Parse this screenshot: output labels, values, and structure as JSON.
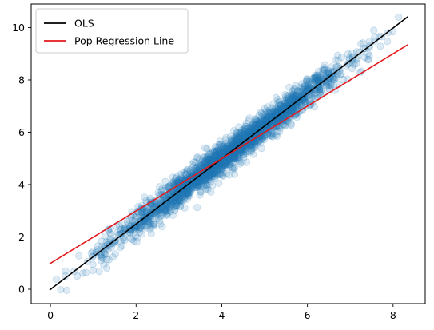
{
  "chart_data": {
    "type": "scatter",
    "title": "",
    "xlabel": "",
    "ylabel": "",
    "xlim": [
      -0.45,
      8.75
    ],
    "ylim": [
      -0.55,
      10.9
    ],
    "xticks": [
      0,
      2,
      4,
      6,
      8
    ],
    "yticks": [
      0,
      2,
      4,
      6,
      8,
      10
    ],
    "grid": false,
    "legend_position": "top-left",
    "scatter": {
      "color": "#1f77b4",
      "opacity": 0.15,
      "x_range": [
        0.0,
        8.4
      ],
      "trend": {
        "slope": 1.25,
        "intercept": -0.03
      },
      "spread": 0.28
    },
    "series": [
      {
        "name": "OLS",
        "type": "line",
        "color": "#000000",
        "x": [
          -0.02,
          8.35
        ],
        "y": [
          -0.03,
          10.42
        ]
      },
      {
        "name": "Pop Regression Line",
        "type": "line",
        "color": "#e41a1c",
        "x": [
          -0.02,
          8.35
        ],
        "y": [
          0.97,
          9.35
        ]
      }
    ]
  }
}
